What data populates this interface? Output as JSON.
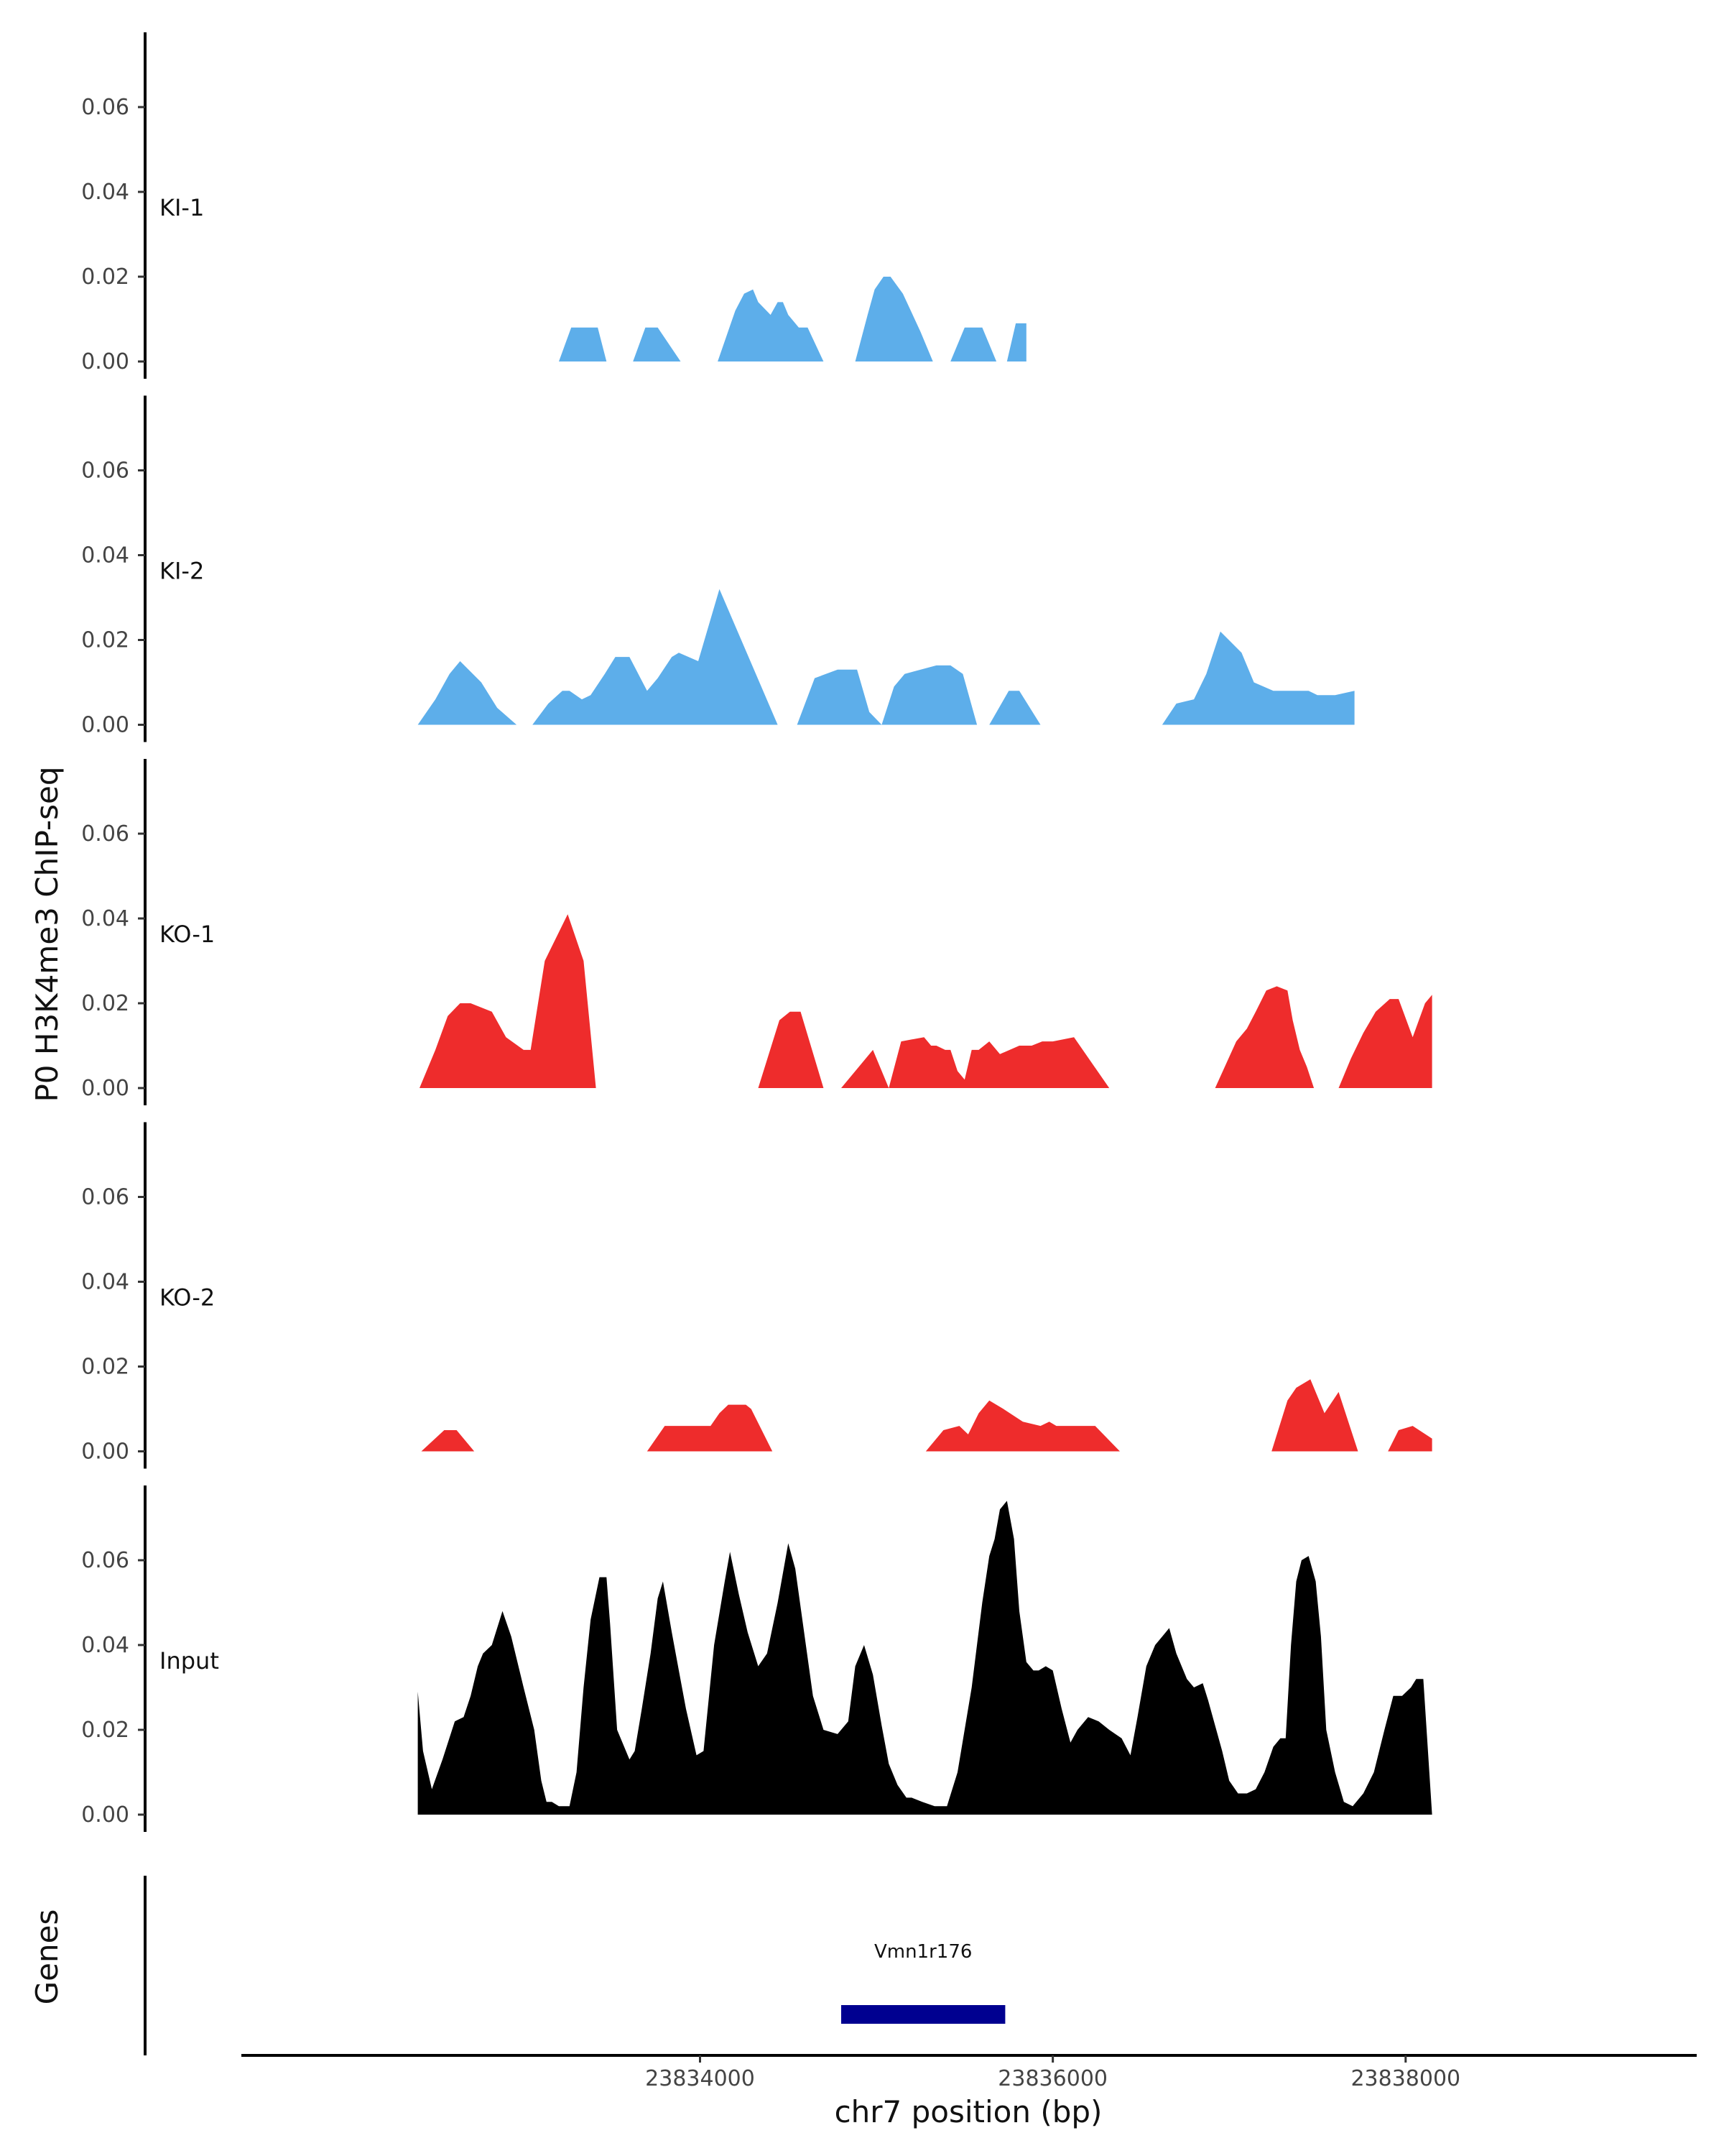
{
  "chart_data": {
    "type": "area",
    "ylabel": "P0 H3K4me3 ChIP-seq",
    "xlabel": "chr7 position (bp)",
    "genes_label": "Genes",
    "xlim": [
      23831400,
      23839650
    ],
    "ylim": [
      0,
      0.078
    ],
    "y_ticks": [
      0,
      0.02,
      0.04,
      0.06
    ],
    "y_tick_labels": [
      "0.00",
      "0.02",
      "0.04",
      "0.06"
    ],
    "x_ticks": [
      23834000,
      23836000,
      23838000
    ],
    "x_tick_labels": [
      "23834000",
      "23836000",
      "23838000"
    ],
    "colors": {
      "KI": "#5daeea",
      "KO": "#ee2c2c",
      "Input": "#000000",
      "gene": "#000090",
      "axis": "#000000"
    },
    "tracks": [
      {
        "name": "KI-1",
        "color": "#5daeea",
        "x": [
          23833200,
          23833270,
          23833330,
          23833420,
          23833470,
          23833620,
          23833690,
          23833760,
          23833890,
          23834100,
          23834200,
          23834250,
          23834300,
          23834330,
          23834400,
          23834440,
          23834470,
          23834500,
          23834560,
          23834610,
          23834700,
          23834770,
          23834880,
          23834950,
          23834990,
          23835040,
          23835080,
          23835150,
          23835250,
          23835320,
          23835420,
          23835500,
          23835550,
          23835600,
          23835680,
          23835740,
          23835790,
          23835850
        ],
        "y": [
          0,
          0.008,
          0.008,
          0.008,
          0,
          0,
          0.008,
          0.008,
          0,
          0,
          0.012,
          0.016,
          0.017,
          0.014,
          0.011,
          0.014,
          0.014,
          0.011,
          0.008,
          0.008,
          0,
          0,
          0,
          0.011,
          0.017,
          0.02,
          0.02,
          0.016,
          0.007,
          0,
          0,
          0.008,
          0.008,
          0.008,
          0,
          0,
          0.009,
          0.009
        ],
        "y_end": 0
      },
      {
        "name": "KI-2",
        "color": "#5daeea",
        "x": [
          23832400,
          23832500,
          23832580,
          23832640,
          23832760,
          23832850,
          23832960,
          23833050,
          23833140,
          23833220,
          23833260,
          23833330,
          23833380,
          23833460,
          23833520,
          23833600,
          23833700,
          23833760,
          23833840,
          23833880,
          23833990,
          23834110,
          23834440,
          23834550,
          23834650,
          23834780,
          23834890,
          23834960,
          23835030,
          23835100,
          23835160,
          23835340,
          23835420,
          23835490,
          23835570,
          23835640,
          23835750,
          23835810,
          23835930,
          23836620,
          23836700,
          23836800,
          23836870,
          23836950,
          23837070,
          23837140,
          23837250,
          23837350,
          23837450,
          23837500,
          23837600,
          23837710
        ],
        "y": [
          0,
          0.006,
          0.012,
          0.015,
          0.01,
          0.004,
          0,
          0,
          0.005,
          0.008,
          0.008,
          0.006,
          0.007,
          0.012,
          0.016,
          0.016,
          0.008,
          0.011,
          0.016,
          0.017,
          0.015,
          0.032,
          0,
          0,
          0.011,
          0.013,
          0.013,
          0.003,
          0,
          0.009,
          0.012,
          0.014,
          0.014,
          0.012,
          0,
          0,
          0.008,
          0.008,
          0,
          0,
          0.005,
          0.006,
          0.012,
          0.022,
          0.017,
          0.01,
          0.008,
          0.008,
          0.008,
          0.007,
          0.007,
          0.008
        ],
        "y_end": 0
      },
      {
        "name": "KO-1",
        "color": "#ee2c2c",
        "x": [
          23832410,
          23832500,
          23832570,
          23832640,
          23832700,
          23832820,
          23832900,
          23833000,
          23833040,
          23833120,
          23833250,
          23833340,
          23833410,
          23833460,
          23833560,
          23833680,
          23834330,
          23834450,
          23834510,
          23834570,
          23834700,
          23834800,
          23834980,
          23834980,
          23835070,
          23835140,
          23835270,
          23835310,
          23835340,
          23835390,
          23835420,
          23835460,
          23835500,
          23835540,
          23835580,
          23835640,
          23835700,
          23835810,
          23835880,
          23835940,
          23836000,
          23836120,
          23836320,
          23836470,
          23836480,
          23836920,
          23837040,
          23837100,
          23837150,
          23837210,
          23837270,
          23837330,
          23837360,
          23837400,
          23837440,
          23837480,
          23837540,
          23837620,
          23837690,
          23837760,
          23837830,
          23837910,
          23837960,
          23838040,
          23838110,
          23838150
        ],
        "y": [
          0,
          0.009,
          0.017,
          0.02,
          0.02,
          0.018,
          0.012,
          0.009,
          0.009,
          0.03,
          0.041,
          0.03,
          0,
          0,
          0,
          0,
          0,
          0.016,
          0.018,
          0.018,
          0,
          0,
          0.009,
          0.009,
          0,
          0.011,
          0.012,
          0.01,
          0.01,
          0.009,
          0.009,
          0.004,
          0.002,
          0.009,
          0.009,
          0.011,
          0.008,
          0.01,
          0.01,
          0.011,
          0.011,
          0.012,
          0,
          0,
          0,
          0,
          0.011,
          0.014,
          0.018,
          0.023,
          0.024,
          0.023,
          0.016,
          0.009,
          0.005,
          0,
          0,
          0,
          0.007,
          0.013,
          0.018,
          0.021,
          0.021,
          0.012,
          0.02,
          0.022
        ],
        "y_end": 0
      },
      {
        "name": "KO-2",
        "color": "#ee2c2c",
        "x": [
          23832420,
          23832550,
          23832620,
          23832720,
          23833700,
          23833800,
          23834060,
          23834110,
          23834160,
          23834260,
          23834290,
          23834410,
          23835280,
          23835380,
          23835470,
          23835520,
          23835580,
          23835640,
          23835720,
          23835830,
          23835930,
          23835980,
          23836020,
          23836120,
          23836240,
          23836380,
          23837240,
          23837330,
          23837380,
          23837460,
          23837540,
          23837620,
          23837730,
          23837780,
          23837900,
          23837960,
          23838040,
          23838150
        ],
        "y": [
          0,
          0.005,
          0.005,
          0,
          0,
          0.006,
          0.006,
          0.009,
          0.011,
          0.011,
          0.01,
          0,
          0,
          0.005,
          0.006,
          0.004,
          0.009,
          0.012,
          0.01,
          0.007,
          0.006,
          0.007,
          0.006,
          0.006,
          0.006,
          0,
          0,
          0.012,
          0.015,
          0.017,
          0.009,
          0.014,
          0,
          0,
          0,
          0.005,
          0.006,
          0.003
        ],
        "y_end": 0
      },
      {
        "name": "Input",
        "color": "#000000",
        "x": [
          23832400,
          23832430,
          23832480,
          23832540,
          23832610,
          23832660,
          23832700,
          23832740,
          23832770,
          23832820,
          23832880,
          23832930,
          23833000,
          23833060,
          23833100,
          23833130,
          23833160,
          23833200,
          23833260,
          23833300,
          23833340,
          23833380,
          23833430,
          23833470,
          23833490,
          23833530,
          23833600,
          23833630,
          23833670,
          23833720,
          23833760,
          23833790,
          23833840,
          23833880,
          23833920,
          23833980,
          23834020,
          23834080,
          23834140,
          23834170,
          23834220,
          23834270,
          23834330,
          23834380,
          23834440,
          23834500,
          23834540,
          23834590,
          23834640,
          23834700,
          23834780,
          23834840,
          23834880,
          23834930,
          23834980,
          23835030,
          23835070,
          23835120,
          23835170,
          23835200,
          23835260,
          23835330,
          23835400,
          23835460,
          23835540,
          23835600,
          23835640,
          23835670,
          23835700,
          23835740,
          23835780,
          23835810,
          23835850,
          23835890,
          23835920,
          23835960,
          23836000,
          23836050,
          23836100,
          23836140,
          23836200,
          23836260,
          23836320,
          23836390,
          23836440,
          23836480,
          23836530,
          23836580,
          23836620,
          23836660,
          23836700,
          23836760,
          23836800,
          23836850,
          23836880,
          23836920,
          23836960,
          23837000,
          23837050,
          23837100,
          23837150,
          23837200,
          23837250,
          23837290,
          23837320,
          23837350,
          23837380,
          23837410,
          23837450,
          23837490,
          23837520,
          23837550,
          23837600,
          23837650,
          23837700,
          23837760,
          23837820,
          23837880,
          23837930,
          23837980,
          23838030,
          23838060,
          23838100,
          23838150
        ],
        "y": [
          0.029,
          0.015,
          0.006,
          0.013,
          0.022,
          0.023,
          0.028,
          0.035,
          0.038,
          0.04,
          0.048,
          0.042,
          0.03,
          0.02,
          0.008,
          0.003,
          0.003,
          0.002,
          0.002,
          0.01,
          0.03,
          0.046,
          0.056,
          0.056,
          0.045,
          0.02,
          0.013,
          0.015,
          0.025,
          0.038,
          0.051,
          0.055,
          0.043,
          0.034,
          0.025,
          0.014,
          0.015,
          0.04,
          0.055,
          0.062,
          0.052,
          0.043,
          0.035,
          0.038,
          0.05,
          0.064,
          0.058,
          0.043,
          0.028,
          0.02,
          0.019,
          0.022,
          0.035,
          0.04,
          0.033,
          0.021,
          0.012,
          0.007,
          0.004,
          0.004,
          0.003,
          0.002,
          0.002,
          0.01,
          0.03,
          0.05,
          0.061,
          0.065,
          0.072,
          0.074,
          0.065,
          0.048,
          0.036,
          0.034,
          0.034,
          0.035,
          0.034,
          0.025,
          0.017,
          0.02,
          0.023,
          0.022,
          0.02,
          0.018,
          0.014,
          0.023,
          0.035,
          0.04,
          0.042,
          0.044,
          0.038,
          0.032,
          0.03,
          0.031,
          0.027,
          0.021,
          0.015,
          0.008,
          0.005,
          0.005,
          0.006,
          0.01,
          0.016,
          0.018,
          0.018,
          0.04,
          0.055,
          0.06,
          0.061,
          0.055,
          0.042,
          0.02,
          0.01,
          0.003,
          0.002,
          0.005,
          0.01,
          0.02,
          0.028,
          0.028,
          0.03,
          0.032,
          0.032,
          0
        ],
        "y_end": 0
      }
    ],
    "gene": {
      "name": "Vmn1r176",
      "start": 23834800,
      "end": 23835730
    }
  }
}
